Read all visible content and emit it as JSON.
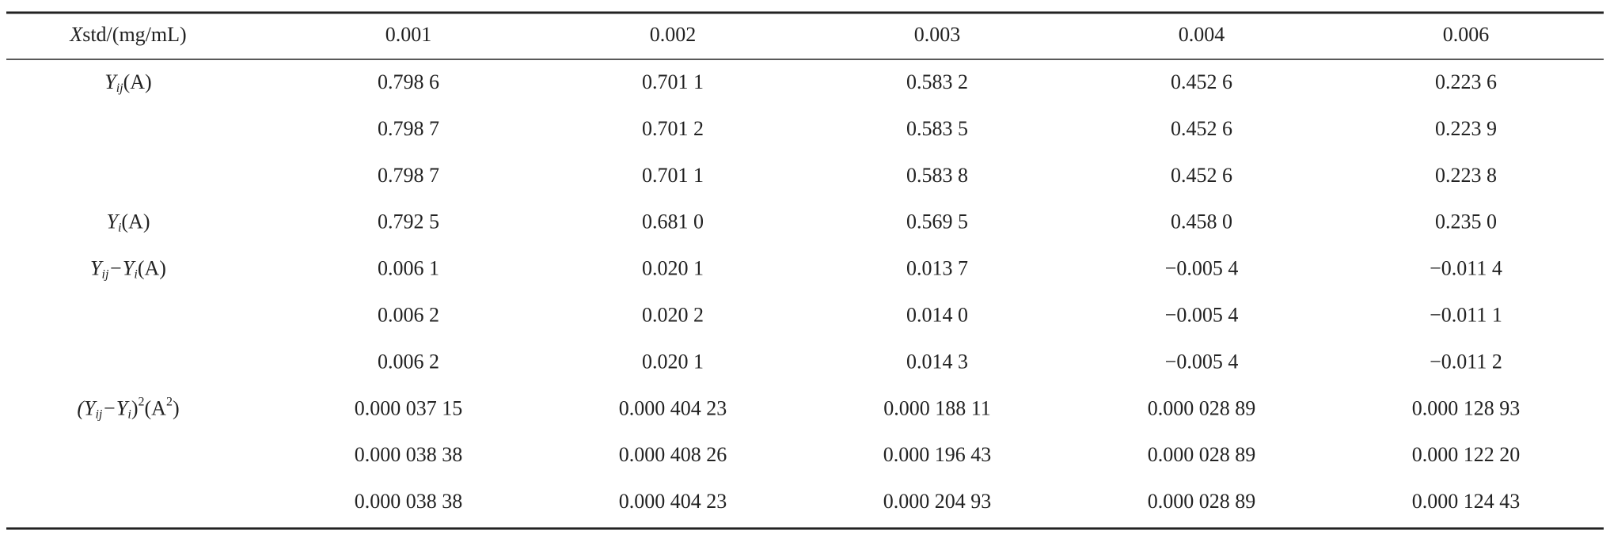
{
  "table": {
    "header": [
      [
        {
          "text": "X",
          "style": "italic"
        },
        {
          "text": "std/(mg/mL)"
        }
      ],
      [
        {
          "text": "0.001"
        }
      ],
      [
        {
          "text": "0.002"
        }
      ],
      [
        {
          "text": "0.003"
        }
      ],
      [
        {
          "text": "0.004"
        }
      ],
      [
        {
          "text": "0.006"
        }
      ]
    ],
    "rows": [
      {
        "label": [
          {
            "text": "Y",
            "style": "italic"
          },
          {
            "text": "ij",
            "style": "sub"
          },
          {
            "text": "(A)"
          }
        ],
        "cells": [
          "0.798 6",
          "0.701 1",
          "0.583 2",
          "0.452 6",
          "0.223 6"
        ]
      },
      {
        "label": null,
        "cells": [
          "0.798 7",
          "0.701 2",
          "0.583 5",
          "0.452 6",
          "0.223 9"
        ]
      },
      {
        "label": null,
        "cells": [
          "0.798 7",
          "0.701 1",
          "0.583 8",
          "0.452 6",
          "0.223 8"
        ]
      },
      {
        "label": [
          {
            "text": "Y",
            "style": "italic"
          },
          {
            "text": "i",
            "style": "sub"
          },
          {
            "text": "(A)"
          }
        ],
        "cells": [
          "0.792 5",
          "0.681 0",
          "0.569 5",
          "0.458 0",
          "0.235 0"
        ]
      },
      {
        "label": [
          {
            "text": "Y",
            "style": "italic"
          },
          {
            "text": "ij",
            "style": "sub"
          },
          {
            "text": "−Y",
            "style": "italic"
          },
          {
            "text": "i",
            "style": "sub"
          },
          {
            "text": "(A)"
          }
        ],
        "cells": [
          "0.006 1",
          "0.020 1",
          "0.013 7",
          "−0.005 4",
          "−0.011 4"
        ]
      },
      {
        "label": null,
        "cells": [
          "0.006 2",
          "0.020 2",
          "0.014 0",
          "−0.005 4",
          "−0.011 1"
        ]
      },
      {
        "label": null,
        "cells": [
          "0.006 2",
          "0.020 1",
          "0.014 3",
          "−0.005 4",
          "−0.011 2"
        ]
      },
      {
        "label": [
          {
            "text": "(Y",
            "style": "italic"
          },
          {
            "text": "ij",
            "style": "sub"
          },
          {
            "text": "−Y",
            "style": "italic"
          },
          {
            "text": "i",
            "style": "sub"
          },
          {
            "text": ")"
          },
          {
            "text": "2",
            "style": "sup"
          },
          {
            "text": "(A"
          },
          {
            "text": "2",
            "style": "sup"
          },
          {
            "text": ")"
          }
        ],
        "cells": [
          "0.000 037 15",
          "0.000 404 23",
          "0.000 188 11",
          "0.000 028 89",
          "0.000 128 93"
        ]
      },
      {
        "label": null,
        "cells": [
          "0.000 038 38",
          "0.000 408 26",
          "0.000 196 43",
          "0.000 028 89",
          "0.000 122 20"
        ]
      },
      {
        "label": null,
        "cells": [
          "0.000 038 38",
          "0.000 404 23",
          "0.000 204 93",
          "0.000 028 89",
          "0.000 124 43"
        ]
      }
    ]
  }
}
